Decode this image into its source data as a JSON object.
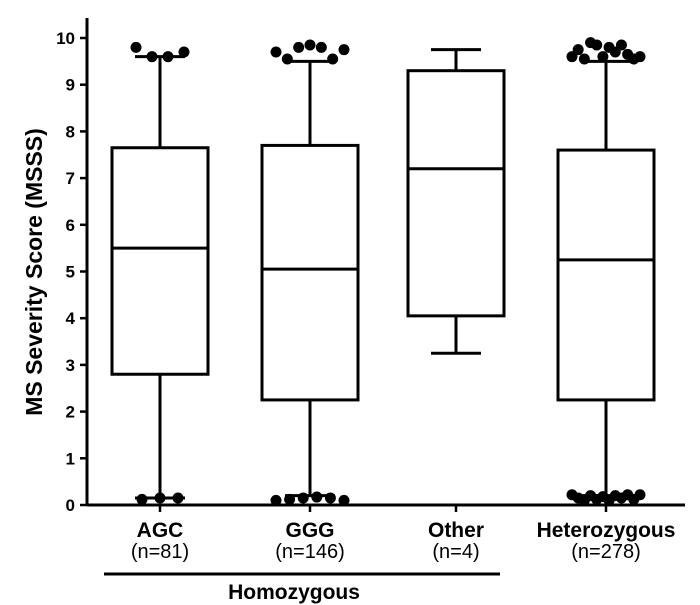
{
  "chart_data": {
    "type": "box",
    "ylabel": "MS Severity Score (MSSS)",
    "ylim": [
      0,
      10
    ],
    "yticks": [
      0,
      1,
      2,
      3,
      4,
      5,
      6,
      7,
      8,
      9,
      10
    ],
    "group_label": "Homozygous",
    "group_members": [
      "AGC",
      "GGG",
      "Other"
    ],
    "categories": [
      {
        "name": "AGC",
        "n_label": "(n=81)",
        "whisker_low": 0.15,
        "q1": 2.8,
        "median": 5.5,
        "q3": 7.65,
        "whisker_high": 9.6,
        "outliers": [
          0.12,
          0.15,
          0.15,
          9.8,
          9.6,
          9.6,
          9.7
        ]
      },
      {
        "name": "GGG",
        "n_label": "(n=146)",
        "whisker_low": 0.2,
        "q1": 2.25,
        "median": 5.05,
        "q3": 7.7,
        "whisker_high": 9.5,
        "outliers": [
          0.1,
          0.12,
          0.15,
          0.17,
          0.15,
          0.1,
          9.7,
          9.55,
          9.8,
          9.85,
          9.8,
          9.55,
          9.75
        ]
      },
      {
        "name": "Other",
        "n_label": "(n=4)",
        "whisker_low": 3.25,
        "q1": 4.05,
        "median": 7.2,
        "q3": 9.3,
        "whisker_high": 9.75,
        "outliers": []
      },
      {
        "name": "Heterozygous",
        "n_label": "(n=278)",
        "whisker_low": 0.2,
        "q1": 2.25,
        "median": 5.25,
        "q3": 7.6,
        "whisker_high": 9.5,
        "outliers": [
          0.22,
          0.15,
          0.1,
          0.2,
          0.12,
          0.18,
          0.1,
          0.2,
          0.15,
          0.22,
          0.12,
          0.22,
          9.6,
          9.75,
          9.55,
          9.9,
          9.85,
          9.6,
          9.8,
          9.7,
          9.85,
          9.65,
          9.55,
          9.6
        ]
      }
    ]
  }
}
